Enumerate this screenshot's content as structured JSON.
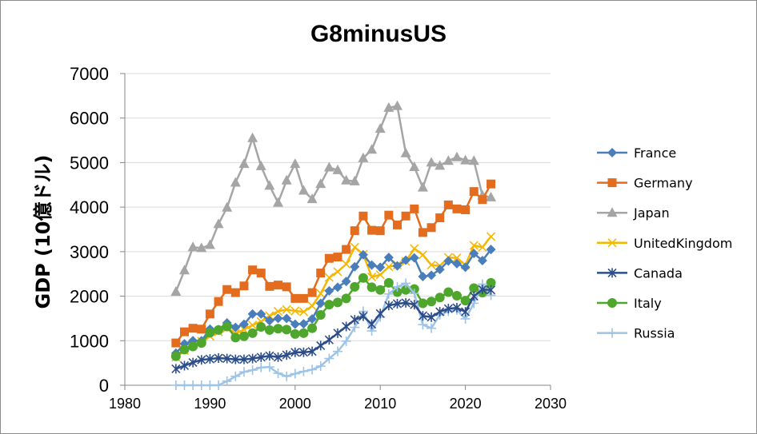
{
  "chart_data": {
    "type": "line",
    "title": "G8minusUS",
    "xlabel": "",
    "ylabel": "GDP (10億ドル)",
    "xlim": [
      1980,
      2030
    ],
    "ylim": [
      0,
      7000
    ],
    "xticks": [
      "1980",
      "1990",
      "2000",
      "2010",
      "2020",
      "2030"
    ],
    "yticks": [
      "0",
      "1000",
      "2000",
      "3000",
      "4000",
      "5000",
      "6000",
      "7000"
    ],
    "grid": "horizontal",
    "legend": "right",
    "x": [
      1986,
      1987,
      1988,
      1989,
      1990,
      1991,
      1992,
      1993,
      1994,
      1995,
      1996,
      1997,
      1998,
      1999,
      2000,
      2001,
      2002,
      2003,
      2004,
      2005,
      2006,
      2007,
      2008,
      2009,
      2010,
      2011,
      2012,
      2013,
      2014,
      2015,
      2016,
      2017,
      2018,
      2019,
      2020,
      2021,
      2022,
      2023
    ],
    "series": [
      {
        "name": "France",
        "color": "#4a7ebb",
        "marker": "diamond",
        "values": [
          720,
          930,
          1000,
          1000,
          1260,
          1250,
          1400,
          1300,
          1370,
          1600,
          1600,
          1450,
          1500,
          1500,
          1370,
          1380,
          1490,
          1840,
          2120,
          2200,
          2330,
          2660,
          2930,
          2700,
          2650,
          2870,
          2680,
          2810,
          2860,
          2440,
          2470,
          2600,
          2790,
          2730,
          2650,
          2960,
          2800,
          3050
        ]
      },
      {
        "name": "Germany",
        "color": "#e36c1e",
        "marker": "square",
        "values": [
          950,
          1200,
          1280,
          1260,
          1600,
          1880,
          2150,
          2080,
          2230,
          2590,
          2520,
          2220,
          2250,
          2210,
          1950,
          1950,
          2080,
          2520,
          2850,
          2880,
          3050,
          3470,
          3800,
          3480,
          3470,
          3820,
          3600,
          3800,
          3960,
          3430,
          3540,
          3760,
          4050,
          3960,
          3940,
          4350,
          4170,
          4520
        ]
      },
      {
        "name": "Japan",
        "color": "#a5a5a5",
        "marker": "triangle",
        "values": [
          2100,
          2580,
          3100,
          3080,
          3150,
          3620,
          3990,
          4550,
          4970,
          5550,
          4920,
          4480,
          4100,
          4600,
          4970,
          4370,
          4180,
          4520,
          4890,
          4830,
          4600,
          4580,
          5100,
          5290,
          5760,
          6230,
          6270,
          5210,
          4900,
          4440,
          5000,
          4930,
          5040,
          5120,
          5050,
          5040,
          4260,
          4220
        ]
      },
      {
        "name": "UnitedKingdom",
        "color": "#f5b800",
        "marker": "x",
        "values": [
          630,
          780,
          930,
          990,
          1100,
          1200,
          1280,
          1160,
          1250,
          1350,
          1430,
          1560,
          1660,
          1700,
          1670,
          1650,
          1780,
          2060,
          2420,
          2550,
          2720,
          3100,
          2940,
          2430,
          2480,
          2660,
          2700,
          2780,
          3070,
          2930,
          2700,
          2680,
          2870,
          2860,
          2700,
          3140,
          3100,
          3340
        ]
      },
      {
        "name": "Canada",
        "color": "#2c4d8a",
        "marker": "star",
        "values": [
          370,
          440,
          510,
          570,
          590,
          610,
          600,
          580,
          580,
          600,
          630,
          660,
          630,
          680,
          740,
          740,
          760,
          890,
          1020,
          1170,
          1320,
          1470,
          1550,
          1370,
          1610,
          1790,
          1830,
          1850,
          1810,
          1560,
          1530,
          1650,
          1720,
          1740,
          1650,
          2000,
          2150,
          2140
        ]
      },
      {
        "name": "Italy",
        "color": "#4ea72c",
        "marker": "circle",
        "values": [
          650,
          800,
          870,
          950,
          1180,
          1240,
          1320,
          1070,
          1100,
          1170,
          1310,
          1240,
          1270,
          1250,
          1150,
          1170,
          1280,
          1580,
          1810,
          1860,
          1950,
          2210,
          2410,
          2200,
          2140,
          2300,
          2090,
          2140,
          2160,
          1840,
          1880,
          1970,
          2090,
          2010,
          1900,
          2180,
          2080,
          2300
        ]
      },
      {
        "name": "Russia",
        "color": "#9dc3e6",
        "marker": "plus",
        "values": [
          0,
          0,
          0,
          0,
          0,
          0,
          90,
          200,
          300,
          340,
          400,
          410,
          270,
          200,
          260,
          310,
          350,
          430,
          600,
          760,
          990,
          1300,
          1660,
          1220,
          1530,
          2050,
          2210,
          2290,
          2060,
          1360,
          1280,
          1580,
          1660,
          1690,
          1490,
          1840,
          2270,
          2020
        ]
      }
    ]
  }
}
